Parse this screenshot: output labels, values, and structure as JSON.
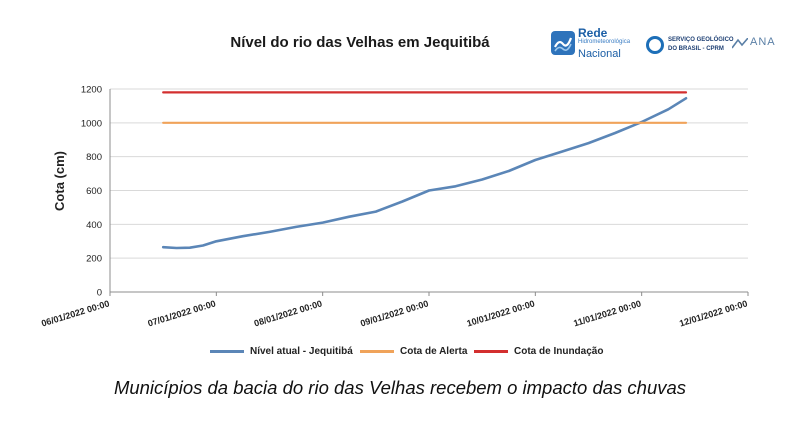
{
  "chart_data": {
    "type": "line",
    "title": "Nível do rio das Velhas em Jequitibá",
    "ylabel": "Cota (cm)",
    "xlabel": "",
    "ylim": [
      0,
      1200
    ],
    "yticks": [
      0,
      200,
      400,
      600,
      800,
      1000,
      1200
    ],
    "xlim": [
      "06/01/2022 00:00",
      "12/01/2022 00:00"
    ],
    "xtick_labels": [
      "06/01/2022 00:00",
      "07/01/2022 00:00",
      "08/01/2022 00:00",
      "09/01/2022 00:00",
      "10/01/2022 00:00",
      "11/01/2022 00:00",
      "12/01/2022 00:00"
    ],
    "grid": "horizontal",
    "legend_position": "bottom",
    "series": [
      {
        "name": "Nível atual - Jequitibá",
        "color": "#5b86b7",
        "x": [
          "06/01/2022 12:00",
          "06/01/2022 15:00",
          "06/01/2022 18:00",
          "06/01/2022 21:00",
          "07/01/2022 00:00",
          "07/01/2022 06:00",
          "07/01/2022 12:00",
          "07/01/2022 18:00",
          "08/01/2022 00:00",
          "08/01/2022 06:00",
          "08/01/2022 12:00",
          "08/01/2022 18:00",
          "09/01/2022 00:00",
          "09/01/2022 06:00",
          "09/01/2022 12:00",
          "09/01/2022 18:00",
          "10/01/2022 00:00",
          "10/01/2022 06:00",
          "10/01/2022 12:00",
          "10/01/2022 18:00",
          "11/01/2022 00:00",
          "11/01/2022 06:00",
          "11/01/2022 10:00"
        ],
        "values": [
          265,
          260,
          262,
          275,
          300,
          330,
          355,
          385,
          410,
          445,
          475,
          535,
          600,
          625,
          665,
          715,
          780,
          830,
          880,
          940,
          1005,
          1080,
          1145
        ]
      },
      {
        "name": "Cota de Alerta",
        "color": "#f0a35a",
        "x": [
          "06/01/2022 12:00",
          "11/01/2022 10:00"
        ],
        "values": [
          1000,
          1000
        ]
      },
      {
        "name": "Cota de Inundação",
        "color": "#d32f2f",
        "x": [
          "06/01/2022 12:00",
          "11/01/2022 10:00"
        ],
        "values": [
          1180,
          1180
        ]
      }
    ]
  },
  "logos": {
    "rede_line1": "Rede",
    "rede_line2": "Hidrometeorológica",
    "rede_line3": "Nacional",
    "cprm_line1": "SERVIÇO GEOLÓGICO",
    "cprm_line2": "DO BRASIL - CPRM",
    "ana": "ANA"
  },
  "caption": "Municípios da bacia do rio das Velhas recebem o impacto das chuvas"
}
